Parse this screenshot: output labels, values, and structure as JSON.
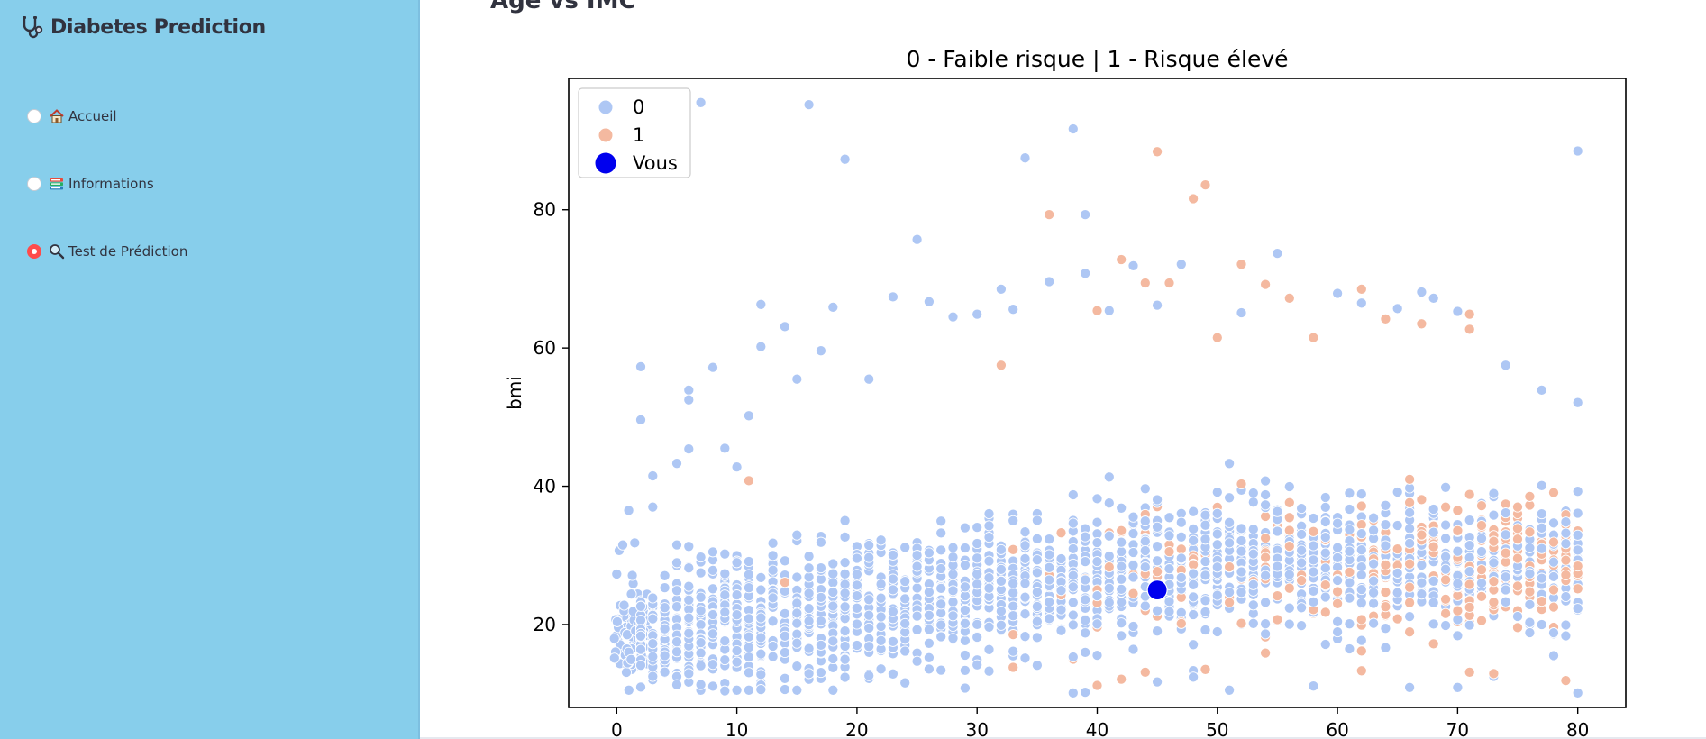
{
  "app": {
    "title": "Diabetes Prediction",
    "nav": [
      {
        "label": "Accueil",
        "icon": "house-icon",
        "selected": false
      },
      {
        "label": "Informations",
        "icon": "books-icon",
        "selected": false
      },
      {
        "label": "Test de Prédiction",
        "icon": "magnifier-icon",
        "selected": true
      }
    ]
  },
  "main": {
    "heading": "Age vs IMC"
  },
  "colors": {
    "sidebar_bg": "#87ceeb",
    "class0": "#aec7f4",
    "class1": "#f4b9a0",
    "you": "#0000ee",
    "radio_active": "#ff4b4b"
  },
  "chart_data": {
    "type": "scatter",
    "title": "0 - Faible risque | 1 - Risque élevé",
    "xlabel": "",
    "ylabel": "bmi",
    "xlim": [
      -4,
      84
    ],
    "ylim": [
      8,
      99
    ],
    "xticks": [
      0,
      10,
      20,
      30,
      40,
      50,
      60,
      70,
      80
    ],
    "yticks": [
      20,
      40,
      60,
      80
    ],
    "grid": false,
    "legend": {
      "position": "top-left",
      "entries": [
        "0",
        "1",
        "Vous"
      ]
    },
    "series": [
      {
        "name": "0",
        "color": "#aec7f4",
        "points": [
          [
            0,
            27.3
          ],
          [
            0.2,
            30.7
          ],
          [
            0.5,
            31.5
          ],
          [
            1,
            36.5
          ],
          [
            1.3,
            27.1
          ],
          [
            1.5,
            31.8
          ],
          [
            2,
            57.3
          ],
          [
            2,
            49.6
          ],
          [
            3,
            41.5
          ],
          [
            3,
            37
          ],
          [
            5,
            43.3
          ],
          [
            6,
            53.9
          ],
          [
            6,
            52.5
          ],
          [
            6,
            45.4
          ],
          [
            7,
            95.5
          ],
          [
            8,
            57.2
          ],
          [
            9,
            45.5
          ],
          [
            10,
            42.8
          ],
          [
            11,
            50.2
          ],
          [
            12,
            66.3
          ],
          [
            12,
            60.2
          ],
          [
            14,
            63.1
          ],
          [
            15,
            55.5
          ],
          [
            16,
            95.2
          ],
          [
            17,
            59.6
          ],
          [
            18,
            65.9
          ],
          [
            19,
            87.3
          ],
          [
            21,
            55.5
          ],
          [
            23,
            67.4
          ],
          [
            25,
            75.7
          ],
          [
            26,
            66.7
          ],
          [
            28,
            64.5
          ],
          [
            30,
            64.9
          ],
          [
            32,
            68.5
          ],
          [
            33,
            65.6
          ],
          [
            34,
            87.5
          ],
          [
            36,
            69.6
          ],
          [
            38,
            91.7
          ],
          [
            39,
            79.3
          ],
          [
            39,
            70.8
          ],
          [
            41,
            65.4
          ],
          [
            43,
            71.9
          ],
          [
            45,
            66.2
          ],
          [
            47,
            72.1
          ],
          [
            52,
            65.1
          ],
          [
            55,
            73.7
          ],
          [
            60,
            67.9
          ],
          [
            62,
            66.5
          ],
          [
            65,
            65.7
          ],
          [
            67,
            68.1
          ],
          [
            68,
            67.2
          ],
          [
            70,
            65.3
          ],
          [
            74,
            57.5
          ],
          [
            77,
            53.9
          ],
          [
            80,
            88.5
          ],
          [
            80,
            52.1
          ],
          [
            3,
            12.5
          ],
          [
            5,
            11.3
          ],
          [
            9,
            10.4
          ],
          [
            12,
            10.6
          ],
          [
            29,
            10.8
          ],
          [
            38,
            10.1
          ],
          [
            39,
            10.2
          ],
          [
            45,
            11.7
          ],
          [
            51,
            10.5
          ],
          [
            58,
            11.1
          ],
          [
            66,
            10.9
          ],
          [
            70,
            10.9
          ],
          [
            80,
            10.1
          ],
          [
            73,
            12.5
          ],
          [
            78,
            15.5
          ],
          [
            35,
            14.1
          ],
          [
            27,
            13.4
          ],
          [
            16,
            12.9
          ],
          [
            21,
            12.6
          ],
          [
            48,
            12.4
          ]
        ]
      },
      {
        "name": "1",
        "color": "#f4b9a0",
        "points": [
          [
            45,
            88.4
          ],
          [
            48,
            81.6
          ],
          [
            49,
            83.6
          ],
          [
            36,
            79.3
          ],
          [
            42,
            72.8
          ],
          [
            44,
            69.4
          ],
          [
            46,
            69.4
          ],
          [
            52,
            72.1
          ],
          [
            54,
            69.2
          ],
          [
            56,
            67.2
          ],
          [
            62,
            68.5
          ],
          [
            64,
            64.2
          ],
          [
            67,
            63.5
          ],
          [
            71,
            64.9
          ],
          [
            71,
            62.7
          ],
          [
            40,
            65.4
          ],
          [
            50,
            61.5
          ],
          [
            58,
            61.5
          ],
          [
            32,
            57.5
          ],
          [
            11,
            40.8
          ],
          [
            14,
            26.1
          ],
          [
            33,
            13.8
          ],
          [
            40,
            11.2
          ],
          [
            42,
            12.1
          ],
          [
            44,
            13.1
          ],
          [
            49,
            13.5
          ],
          [
            62,
            13.3
          ],
          [
            71,
            13.1
          ],
          [
            73,
            12.9
          ],
          [
            79,
            11.9
          ]
        ]
      },
      {
        "name": "Vous",
        "color": "#0000ee",
        "points": [
          [
            45,
            25
          ]
        ]
      }
    ]
  }
}
